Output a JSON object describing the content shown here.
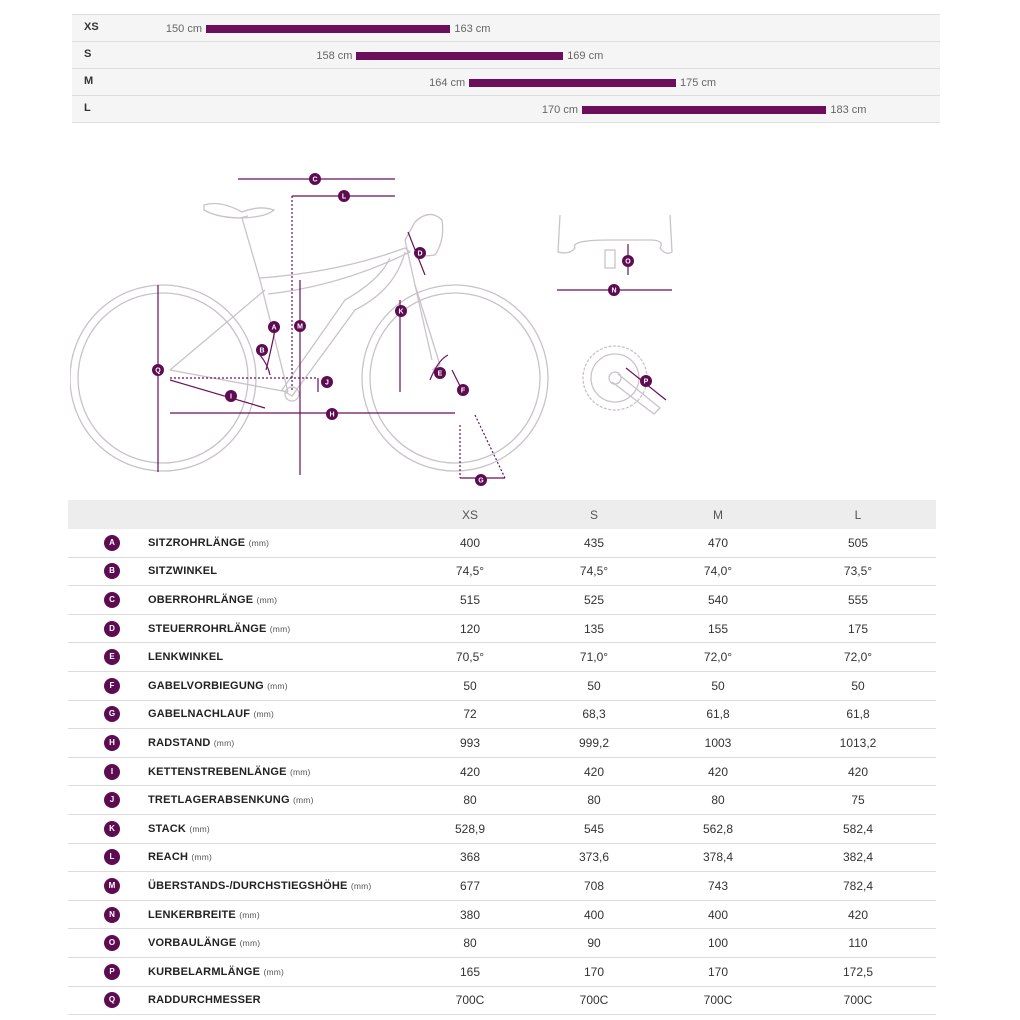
{
  "size_ranges": [
    {
      "size": "XS",
      "min": 150,
      "max": 163,
      "min_label": "150 cm",
      "max_label": "163 cm"
    },
    {
      "size": "S",
      "min": 158,
      "max": 169,
      "min_label": "158 cm",
      "max_label": "169 cm"
    },
    {
      "size": "M",
      "min": 164,
      "max": 175,
      "min_label": "164 cm",
      "max_label": "175 cm"
    },
    {
      "size": "L",
      "min": 170,
      "max": 183,
      "min_label": "170 cm",
      "max_label": "183 cm"
    }
  ],
  "colors": {
    "accent": "#6b0f5c",
    "badge": "#5e0c52",
    "diagram_line": "#c9c3c9"
  },
  "diagram_letters": [
    "A",
    "B",
    "C",
    "D",
    "E",
    "F",
    "G",
    "H",
    "I",
    "J",
    "K",
    "L",
    "M",
    "N",
    "O",
    "P",
    "Q"
  ],
  "table": {
    "headers": [
      "XS",
      "S",
      "M",
      "L"
    ],
    "rows": [
      {
        "letter": "A",
        "name": "SITZROHRLÄNGE",
        "unit": "(mm)",
        "values": [
          "400",
          "435",
          "470",
          "505"
        ]
      },
      {
        "letter": "B",
        "name": "SITZWINKEL",
        "unit": "",
        "values": [
          "74,5°",
          "74,5°",
          "74,0°",
          "73,5°"
        ]
      },
      {
        "letter": "C",
        "name": "OBERROHRLÄNGE",
        "unit": "(mm)",
        "values": [
          "515",
          "525",
          "540",
          "555"
        ]
      },
      {
        "letter": "D",
        "name": "STEUERROHRLÄNGE",
        "unit": "(mm)",
        "values": [
          "120",
          "135",
          "155",
          "175"
        ]
      },
      {
        "letter": "E",
        "name": "LENKWINKEL",
        "unit": "",
        "values": [
          "70,5°",
          "71,0°",
          "72,0°",
          "72,0°"
        ]
      },
      {
        "letter": "F",
        "name": "GABELVORBIEGUNG",
        "unit": "(mm)",
        "values": [
          "50",
          "50",
          "50",
          "50"
        ]
      },
      {
        "letter": "G",
        "name": "GABELNACHLAUF",
        "unit": "(mm)",
        "values": [
          "72",
          "68,3",
          "61,8",
          "61,8"
        ]
      },
      {
        "letter": "H",
        "name": "RADSTAND",
        "unit": "(mm)",
        "values": [
          "993",
          "999,2",
          "1003",
          "1013,2"
        ]
      },
      {
        "letter": "I",
        "name": "KETTENSTREBENLÄNGE",
        "unit": "(mm)",
        "values": [
          "420",
          "420",
          "420",
          "420"
        ]
      },
      {
        "letter": "J",
        "name": "TRETLAGERABSENKUNG",
        "unit": "(mm)",
        "values": [
          "80",
          "80",
          "80",
          "75"
        ]
      },
      {
        "letter": "K",
        "name": "STACK",
        "unit": "(mm)",
        "values": [
          "528,9",
          "545",
          "562,8",
          "582,4"
        ]
      },
      {
        "letter": "L",
        "name": "REACH",
        "unit": "(mm)",
        "values": [
          "368",
          "373,6",
          "378,4",
          "382,4"
        ]
      },
      {
        "letter": "M",
        "name": "ÜBERSTANDS-/DURCHSTIEGSHÖHE",
        "unit": "(mm)",
        "values": [
          "677",
          "708",
          "743",
          "782,4"
        ]
      },
      {
        "letter": "N",
        "name": "LENKERBREITE",
        "unit": "(mm)",
        "values": [
          "380",
          "400",
          "400",
          "420"
        ]
      },
      {
        "letter": "O",
        "name": "VORBAULÄNGE",
        "unit": "(mm)",
        "values": [
          "80",
          "90",
          "100",
          "110"
        ]
      },
      {
        "letter": "P",
        "name": "KURBELARMLÄNGE",
        "unit": "(mm)",
        "values": [
          "165",
          "170",
          "170",
          "172,5"
        ]
      },
      {
        "letter": "Q",
        "name": "RADDURCHMESSER",
        "unit": "",
        "values": [
          "700C",
          "700C",
          "700C",
          "700C"
        ]
      }
    ]
  }
}
